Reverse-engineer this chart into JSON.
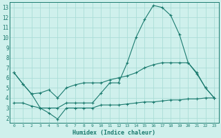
{
  "xlabel": "Humidex (Indice chaleur)",
  "bg_color": "#cff0ec",
  "line_color": "#1a7a6e",
  "grid_color": "#aaddd7",
  "xlim": [
    -0.5,
    23.5
  ],
  "ylim": [
    1.5,
    13.5
  ],
  "xticks": [
    0,
    1,
    2,
    3,
    4,
    5,
    6,
    7,
    8,
    9,
    10,
    11,
    12,
    13,
    14,
    15,
    16,
    17,
    18,
    19,
    20,
    21,
    22,
    23
  ],
  "yticks": [
    2,
    3,
    4,
    5,
    6,
    7,
    8,
    9,
    10,
    11,
    12,
    13
  ],
  "series": [
    {
      "x": [
        0,
        1,
        2,
        3,
        4,
        5,
        6,
        7,
        8,
        9,
        10,
        11,
        12,
        13,
        14,
        15,
        16,
        17,
        18,
        19,
        20,
        21,
        22,
        23
      ],
      "y": [
        6.5,
        5.4,
        4.4,
        3.0,
        3.0,
        3.0,
        3.5,
        3.5,
        3.5,
        3.5,
        4.5,
        5.5,
        5.5,
        7.5,
        10.0,
        11.8,
        13.2,
        13.0,
        12.2,
        10.3,
        7.5,
        6.4,
        5.0,
        4.0
      ]
    },
    {
      "x": [
        0,
        1,
        2,
        3,
        4,
        5,
        6,
        7,
        8,
        9,
        10,
        11,
        12,
        13,
        14,
        15,
        16,
        17,
        18,
        19,
        20,
        21,
        22,
        23
      ],
      "y": [
        6.5,
        5.4,
        4.4,
        4.5,
        4.8,
        4.0,
        5.0,
        5.3,
        5.5,
        5.5,
        5.5,
        5.8,
        6.0,
        6.2,
        6.5,
        7.0,
        7.3,
        7.5,
        7.5,
        7.5,
        7.5,
        6.5,
        5.0,
        4.0
      ]
    },
    {
      "x": [
        0,
        1,
        2,
        3,
        4,
        5,
        6,
        7,
        8,
        9,
        10,
        11,
        12,
        13,
        14,
        15,
        16,
        17,
        18,
        19,
        20,
        21,
        22,
        23
      ],
      "y": [
        3.5,
        3.5,
        3.2,
        3.0,
        2.5,
        1.9,
        3.0,
        3.0,
        3.0,
        3.0,
        3.3,
        3.3,
        3.3,
        3.4,
        3.5,
        3.6,
        3.6,
        3.7,
        3.8,
        3.8,
        3.9,
        3.9,
        4.0,
        4.0
      ]
    }
  ]
}
